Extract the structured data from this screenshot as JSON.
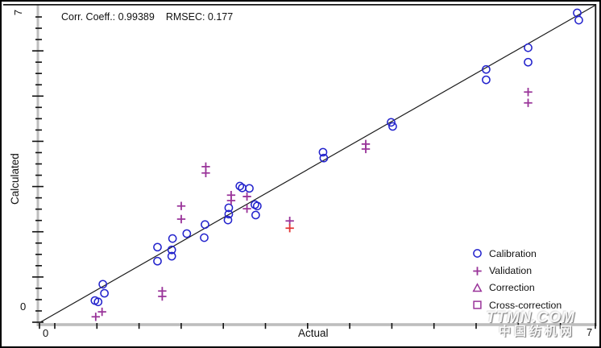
{
  "header": {
    "corr_label": "Corr. Coeff.: 0.99389",
    "rmsec_label": "RMSEC: 0.177"
  },
  "axes": {
    "x": {
      "label": "Actual",
      "min_label": "0",
      "max_label": "7"
    },
    "y": {
      "label": "Calculated",
      "min_label": "0",
      "max_label": "7"
    }
  },
  "legend": {
    "items": [
      {
        "label": "Calibration",
        "marker": "circle",
        "color": "#2222cc"
      },
      {
        "label": "Validation",
        "marker": "plus",
        "color": "#993399"
      },
      {
        "label": "Correction",
        "marker": "triangle",
        "color": "#993399"
      },
      {
        "label": "Cross-correction",
        "marker": "square",
        "color": "#993399"
      }
    ]
  },
  "watermark": {
    "line1": "TTMN.COM",
    "line2": "中国纺机网"
  },
  "chart_data": {
    "type": "scatter",
    "title": "Corr. Coeff.: 0.99389  RMSEC: 0.177",
    "stats": {
      "corr_coeff": 0.99389,
      "rmsec": 0.177
    },
    "xlabel": "Actual",
    "ylabel": "Calculated",
    "xlim": [
      0,
      7
    ],
    "ylim": [
      0,
      7
    ],
    "grid": false,
    "identity_line": true,
    "legend_position": "lower right",
    "colors": {
      "calibration": "#2222cc",
      "validation": "#993399",
      "highlight": "#e23535",
      "axis": "#bdbdbd",
      "line": "#1b1b1b"
    },
    "series": [
      {
        "name": "Calibration",
        "marker": "circle",
        "color": "#2222cc",
        "in_legend": true,
        "points": [
          [
            0.79,
            0.84
          ],
          [
            0.81,
            0.64
          ],
          [
            0.69,
            0.48
          ],
          [
            0.73,
            0.45
          ],
          [
            1.48,
            1.66
          ],
          [
            1.48,
            1.35
          ],
          [
            1.67,
            1.85
          ],
          [
            1.66,
            1.6
          ],
          [
            1.66,
            1.46
          ],
          [
            1.85,
            1.96
          ],
          [
            2.08,
            2.16
          ],
          [
            2.07,
            1.87
          ],
          [
            2.38,
            2.53
          ],
          [
            2.38,
            2.39
          ],
          [
            2.37,
            2.26
          ],
          [
            2.52,
            3.01
          ],
          [
            2.55,
            2.97
          ],
          [
            2.64,
            2.96
          ],
          [
            2.71,
            2.6
          ],
          [
            2.74,
            2.57
          ],
          [
            2.72,
            2.37
          ],
          [
            3.57,
            3.76
          ],
          [
            3.58,
            3.63
          ],
          [
            4.43,
            4.42
          ],
          [
            4.45,
            4.33
          ],
          [
            5.63,
            5.59
          ],
          [
            5.63,
            5.36
          ],
          [
            6.16,
            6.07
          ],
          [
            6.16,
            5.75
          ],
          [
            6.78,
            6.84
          ],
          [
            6.8,
            6.68
          ]
        ]
      },
      {
        "name": "Validation",
        "marker": "plus",
        "color": "#993399",
        "in_legend": true,
        "points": [
          [
            0.78,
            0.23
          ],
          [
            0.7,
            0.12
          ],
          [
            1.54,
            0.69
          ],
          [
            1.54,
            0.57
          ],
          [
            1.78,
            2.57
          ],
          [
            1.78,
            2.28
          ],
          [
            2.09,
            3.44
          ],
          [
            2.09,
            3.3
          ],
          [
            2.41,
            2.81
          ],
          [
            2.41,
            2.69
          ],
          [
            2.61,
            2.78
          ],
          [
            2.61,
            2.51
          ],
          [
            3.15,
            2.24
          ],
          [
            4.11,
            3.94
          ],
          [
            4.11,
            3.83
          ],
          [
            6.16,
            5.09
          ],
          [
            6.16,
            4.85
          ]
        ]
      },
      {
        "name": "Validation (highlighted)",
        "marker": "plus",
        "color": "#e23535",
        "in_legend": false,
        "points": [
          [
            3.15,
            2.08
          ]
        ]
      },
      {
        "name": "Correction",
        "marker": "triangle",
        "color": "#993399",
        "in_legend": true,
        "points": []
      },
      {
        "name": "Cross-correction",
        "marker": "square",
        "color": "#993399",
        "in_legend": true,
        "points": []
      }
    ]
  }
}
